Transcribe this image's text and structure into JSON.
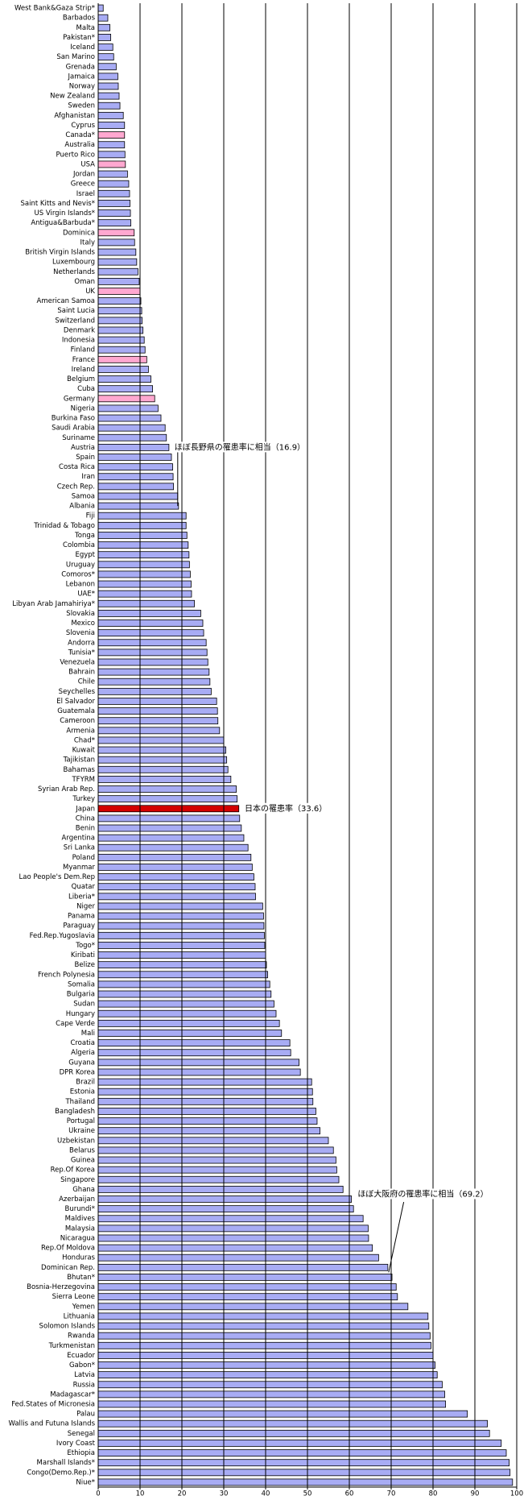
{
  "chart_data": {
    "type": "barh",
    "categories": [
      "West Bank&Gaza Strip*",
      "Barbados",
      "Malta",
      "Pakistan*",
      "Iceland",
      "San Marino",
      "Grenada",
      "Jamaica",
      "Norway",
      "New Zealand",
      "Sweden",
      "Afghanistan",
      "Cyprus",
      "Canada*",
      "Australia",
      "Puerto Rico",
      "USA",
      "Jordan",
      "Greece",
      "Israel",
      "Saint Kitts and Nevis*",
      "US Virgin Islands*",
      "Antigua&Barbuda*",
      "Dominica",
      "Italy",
      "British Virgin Islands",
      "Luxembourg",
      "Netherlands",
      "Oman",
      "UK",
      "American Samoa",
      "Saint Lucia",
      "Switzerland",
      "Denmark",
      "Indonesia",
      "Finland",
      "France",
      "Ireland",
      "Belgium",
      "Cuba",
      "Germany",
      "Nigeria",
      "Burkina Faso",
      "Saudi Arabia",
      "Suriname",
      "Austria",
      "Spain",
      "Costa Rica",
      "Iran",
      "Czech Rep.",
      "Samoa",
      "Albania",
      "Fiji",
      "Trinidad & Tobago",
      "Tonga",
      "Colombia",
      "Egypt",
      "Uruguay",
      "Comoros*",
      "Lebanon",
      "UAE*",
      "Libyan Arab Jamahiriya*",
      "Slovakia",
      "Mexico",
      "Slovenia",
      "Andorra",
      "Tunisia*",
      "Venezuela",
      "Bahrain",
      "Chile",
      "Seychelles",
      "El Salvador",
      "Guatemala",
      "Cameroon",
      "Armenia",
      "Chad*",
      "Kuwait",
      "Tajikistan",
      "Bahamas",
      "TFYRM",
      "Syrian Arab Rep.",
      "Turkey",
      "Japan",
      "China",
      "Benin",
      "Argentina",
      "Sri Lanka",
      "Poland",
      "Myanmar",
      "Lao People's Dem.Rep",
      "Quatar",
      "Liberia*",
      "Niger",
      "Panama",
      "Paraguay",
      "Fed.Rep.Yugoslavia",
      "Togo*",
      "Kiribati",
      "Belize",
      "French Polynesia",
      "Somalia",
      "Bulgaria",
      "Sudan",
      "Hungary",
      "Cape Verde",
      "Mali",
      "Croatia",
      "Algeria",
      "Guyana",
      "DPR Korea",
      "Brazil",
      "Estonia",
      "Thailand",
      "Bangladesh",
      "Portugal",
      "Ukraine",
      "Uzbekistan",
      "Belarus",
      "Guinea",
      "Rep.Of Korea",
      "Singapore",
      "Ghana",
      "Azerbaijan",
      "Burundi*",
      "Maldives",
      "Malaysia",
      "Nicaragua",
      "Rep.Of Moldova",
      "Honduras",
      "Dominican Rep.",
      "Bhutan*",
      "Bosnia-Herzegovina",
      "Sierra Leone",
      "Yemen",
      "Lithuania",
      "Solomon Islands",
      "Rwanda",
      "Turkmenistan",
      "Ecuador",
      "Gabon*",
      "Latvia",
      "Russia",
      "Madagascar*",
      "Fed.States of Micronesia",
      "Palau",
      "Wallis and Futuna Islands",
      "Senegal",
      "Ivory Coast",
      "Ethiopia",
      "Marshall Islands*",
      "Congo(Demo.Rep.)*",
      "Niue*"
    ],
    "values": [
      1.2,
      2.3,
      2.8,
      3.0,
      3.5,
      3.7,
      4.3,
      4.7,
      4.8,
      5.0,
      5.2,
      6.0,
      6.3,
      6.3,
      6.3,
      6.4,
      6.5,
      7.0,
      7.3,
      7.5,
      7.6,
      7.7,
      7.8,
      8.6,
      8.7,
      9.0,
      9.2,
      9.5,
      9.8,
      10.0,
      10.2,
      10.4,
      10.5,
      10.7,
      11.0,
      11.2,
      11.6,
      12.0,
      12.6,
      13.0,
      13.5,
      14.3,
      15.0,
      16.0,
      16.3,
      16.9,
      17.5,
      17.8,
      17.9,
      18.0,
      19.0,
      19.2,
      21.0,
      21.0,
      21.2,
      21.5,
      21.7,
      21.8,
      22.0,
      22.2,
      22.3,
      23.0,
      24.5,
      25.0,
      25.2,
      25.8,
      26.0,
      26.2,
      26.5,
      26.7,
      27.0,
      28.3,
      28.5,
      28.6,
      29.0,
      30.0,
      30.5,
      30.7,
      31.0,
      31.7,
      33.0,
      33.2,
      33.6,
      33.8,
      34.2,
      34.8,
      35.8,
      36.5,
      36.8,
      37.2,
      37.5,
      37.6,
      39.3,
      39.5,
      39.6,
      39.7,
      39.8,
      40.0,
      40.2,
      40.5,
      41.0,
      41.3,
      42.0,
      42.5,
      43.3,
      43.8,
      45.8,
      46.0,
      48.0,
      48.3,
      51.0,
      51.2,
      51.3,
      52.0,
      52.3,
      53.0,
      55.0,
      56.2,
      56.8,
      57.0,
      57.5,
      58.5,
      60.5,
      61.0,
      63.3,
      64.5,
      64.6,
      65.5,
      67.0,
      69.2,
      70.2,
      71.2,
      71.5,
      74.0,
      78.8,
      79.0,
      79.3,
      79.5,
      80.0,
      80.5,
      81.0,
      82.2,
      82.8,
      83.0,
      88.2,
      93.0,
      93.5,
      96.3,
      97.5,
      98.2,
      98.4,
      99.0
    ],
    "color": "#a8acf4",
    "highlight_color": "#ffa8d0",
    "japan_color": "#d40000",
    "colors": [
      "#a8acf4",
      "#a8acf4",
      "#a8acf4",
      "#a8acf4",
      "#a8acf4",
      "#a8acf4",
      "#a8acf4",
      "#a8acf4",
      "#a8acf4",
      "#a8acf4",
      "#a8acf4",
      "#a8acf4",
      "#a8acf4",
      "#ffa8d0",
      "#a8acf4",
      "#a8acf4",
      "#ffa8d0",
      "#a8acf4",
      "#a8acf4",
      "#a8acf4",
      "#a8acf4",
      "#a8acf4",
      "#a8acf4",
      "#ffa8d0",
      "#a8acf4",
      "#a8acf4",
      "#a8acf4",
      "#a8acf4",
      "#a8acf4",
      "#ffa8d0",
      "#a8acf4",
      "#a8acf4",
      "#a8acf4",
      "#a8acf4",
      "#a8acf4",
      "#a8acf4",
      "#ffa8d0",
      "#a8acf4",
      "#a8acf4",
      "#a8acf4",
      "#ffa8d0",
      "#a8acf4",
      "#a8acf4",
      "#a8acf4",
      "#a8acf4",
      "#a8acf4",
      "#a8acf4",
      "#a8acf4",
      "#a8acf4",
      "#a8acf4",
      "#a8acf4",
      "#a8acf4",
      "#a8acf4",
      "#a8acf4",
      "#a8acf4",
      "#a8acf4",
      "#a8acf4",
      "#a8acf4",
      "#a8acf4",
      "#a8acf4",
      "#a8acf4",
      "#a8acf4",
      "#a8acf4",
      "#a8acf4",
      "#a8acf4",
      "#a8acf4",
      "#a8acf4",
      "#a8acf4",
      "#a8acf4",
      "#a8acf4",
      "#a8acf4",
      "#a8acf4",
      "#a8acf4",
      "#a8acf4",
      "#a8acf4",
      "#a8acf4",
      "#a8acf4",
      "#a8acf4",
      "#a8acf4",
      "#a8acf4",
      "#a8acf4",
      "#a8acf4",
      "#d40000",
      "#a8acf4",
      "#a8acf4",
      "#a8acf4",
      "#a8acf4",
      "#a8acf4",
      "#a8acf4",
      "#a8acf4",
      "#a8acf4",
      "#a8acf4",
      "#a8acf4",
      "#a8acf4",
      "#a8acf4",
      "#a8acf4",
      "#a8acf4",
      "#a8acf4",
      "#a8acf4",
      "#a8acf4",
      "#a8acf4",
      "#a8acf4",
      "#a8acf4",
      "#a8acf4",
      "#a8acf4",
      "#a8acf4",
      "#a8acf4",
      "#a8acf4",
      "#a8acf4",
      "#a8acf4",
      "#a8acf4",
      "#a8acf4",
      "#a8acf4",
      "#a8acf4",
      "#a8acf4",
      "#a8acf4",
      "#a8acf4",
      "#a8acf4",
      "#a8acf4",
      "#a8acf4",
      "#a8acf4",
      "#a8acf4",
      "#a8acf4",
      "#a8acf4",
      "#a8acf4",
      "#a8acf4",
      "#a8acf4",
      "#a8acf4",
      "#a8acf4",
      "#a8acf4",
      "#a8acf4",
      "#a8acf4",
      "#a8acf4",
      "#a8acf4",
      "#a8acf4",
      "#a8acf4",
      "#a8acf4",
      "#a8acf4",
      "#a8acf4",
      "#a8acf4",
      "#a8acf4",
      "#a8acf4",
      "#a8acf4",
      "#a8acf4",
      "#a8acf4",
      "#a8acf4",
      "#a8acf4",
      "#a8acf4",
      "#a8acf4",
      "#a8acf4",
      "#a8acf4",
      "#a8acf4"
    ],
    "xlim": [
      0,
      100
    ],
    "xticks": [
      0,
      10,
      20,
      30,
      40,
      50,
      60,
      70,
      80,
      90,
      100
    ],
    "grid": true,
    "annotations": [
      "ほぼ長野県の罹患率に相当（16.9）",
      "日本の罹患率（33.6）",
      "ほぼ大阪府の罹患率に相当（69.2）"
    ]
  }
}
